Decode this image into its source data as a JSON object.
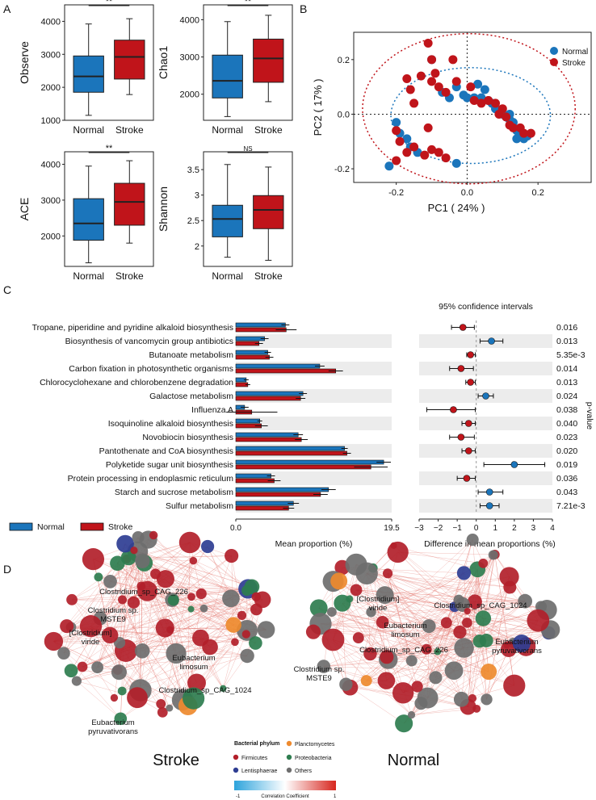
{
  "panel_labels": [
    "A",
    "B",
    "C",
    "D"
  ],
  "colors": {
    "normal": "#1B75BB",
    "stroke": "#C0141A",
    "firmicutes": "#B21F2A",
    "planctomycetes": "#EE8A2E",
    "lentisphaerae": "#2E3D92",
    "proteobacteria": "#2E7D4F",
    "others": "#6E6E6E",
    "edge": "#E06A60"
  },
  "chart_data": [
    {
      "panel": "A",
      "type": "box",
      "metric": "Observe",
      "categories": [
        "Normal",
        "Stroke"
      ],
      "ylim": [
        1000,
        4500
      ],
      "yticks": [
        1000,
        2000,
        3000,
        4000
      ],
      "boxes": [
        {
          "group": "Normal",
          "min": 1150,
          "q1": 1850,
          "median": 2330,
          "q3": 2950,
          "max": 3920
        },
        {
          "group": "Stroke",
          "min": 1780,
          "q1": 2250,
          "median": 2920,
          "q3": 3430,
          "max": 4080
        }
      ],
      "significance": "**"
    },
    {
      "panel": "A",
      "type": "box",
      "metric": "Chao1",
      "categories": [
        "Normal",
        "Stroke"
      ],
      "ylim": [
        1300,
        4400
      ],
      "yticks": [
        2000,
        3000,
        4000
      ],
      "boxes": [
        {
          "group": "Normal",
          "min": 1400,
          "q1": 1900,
          "median": 2360,
          "q3": 3050,
          "max": 3950
        },
        {
          "group": "Stroke",
          "min": 1800,
          "q1": 2320,
          "median": 2960,
          "q3": 3480,
          "max": 4120
        }
      ],
      "significance": "**"
    },
    {
      "panel": "A",
      "type": "box",
      "metric": "ACE",
      "categories": [
        "Normal",
        "Stroke"
      ],
      "ylim": [
        1150,
        4350
      ],
      "yticks": [
        2000,
        3000,
        4000
      ],
      "boxes": [
        {
          "group": "Normal",
          "min": 1250,
          "q1": 1880,
          "median": 2350,
          "q3": 3040,
          "max": 3950
        },
        {
          "group": "Stroke",
          "min": 1800,
          "q1": 2300,
          "median": 2950,
          "q3": 3470,
          "max": 4100
        }
      ],
      "significance": "**"
    },
    {
      "panel": "A",
      "type": "box",
      "metric": "Shannon",
      "categories": [
        "Normal",
        "Stroke"
      ],
      "ylim": [
        1.6,
        3.85
      ],
      "yticks": [
        2.0,
        2.5,
        3.0,
        3.5
      ],
      "boxes": [
        {
          "group": "Normal",
          "min": 1.78,
          "q1": 2.18,
          "median": 2.53,
          "q3": 2.8,
          "max": 3.6
        },
        {
          "group": "Stroke",
          "min": 1.72,
          "q1": 2.34,
          "median": 2.71,
          "q3": 2.99,
          "max": 3.55
        }
      ],
      "significance": "NS"
    },
    {
      "panel": "B",
      "type": "scatter",
      "xlabel": "PC1 ( 24% )",
      "ylabel": "PC2 ( 17% )",
      "xlim": [
        -0.32,
        0.35
      ],
      "ylim": [
        -0.25,
        0.3
      ],
      "xticks": [
        -0.2,
        0.0,
        0.2
      ],
      "yticks": [
        -0.2,
        0.0,
        0.2
      ],
      "legend": [
        "Normal",
        "Stroke"
      ],
      "series": [
        {
          "name": "Normal",
          "points": [
            [
              -0.1,
              0.2
            ],
            [
              -0.07,
              0.08
            ],
            [
              -0.05,
              0.06
            ],
            [
              -0.03,
              0.1
            ],
            [
              -0.01,
              0.07
            ],
            [
              0.0,
              0.06
            ],
            [
              0.02,
              0.06
            ],
            [
              0.04,
              0.06
            ],
            [
              0.05,
              0.09
            ],
            [
              0.06,
              0.05
            ],
            [
              0.07,
              0.04
            ],
            [
              0.08,
              0.02
            ],
            [
              0.09,
              0.01
            ],
            [
              0.1,
              0.0
            ],
            [
              0.11,
              -0.01
            ],
            [
              0.12,
              -0.02
            ],
            [
              0.13,
              -0.03
            ],
            [
              0.14,
              -0.06
            ],
            [
              0.15,
              -0.07
            ],
            [
              0.16,
              -0.09
            ],
            [
              0.17,
              -0.08
            ],
            [
              0.03,
              0.11
            ],
            [
              -0.2,
              -0.03
            ],
            [
              -0.19,
              -0.07
            ],
            [
              -0.17,
              -0.09
            ],
            [
              -0.16,
              -0.12
            ],
            [
              -0.14,
              -0.14
            ],
            [
              -0.22,
              -0.19
            ],
            [
              -0.03,
              -0.18
            ],
            [
              0.14,
              -0.09
            ],
            [
              0.12,
              0.0
            ]
          ]
        },
        {
          "name": "Stroke",
          "points": [
            [
              -0.11,
              0.26
            ],
            [
              -0.1,
              0.2
            ],
            [
              -0.09,
              0.15
            ],
            [
              -0.13,
              0.14
            ],
            [
              -0.04,
              0.2
            ],
            [
              -0.1,
              0.12
            ],
            [
              -0.08,
              0.1
            ],
            [
              -0.06,
              0.08
            ],
            [
              -0.03,
              0.12
            ],
            [
              0.01,
              0.1
            ],
            [
              0.04,
              0.04
            ],
            [
              0.06,
              0.05
            ],
            [
              0.08,
              0.04
            ],
            [
              0.1,
              0.02
            ],
            [
              0.11,
              -0.01
            ],
            [
              0.12,
              -0.04
            ],
            [
              0.13,
              -0.05
            ],
            [
              0.15,
              -0.05
            ],
            [
              0.16,
              -0.07
            ],
            [
              0.18,
              -0.07
            ],
            [
              -0.17,
              0.13
            ],
            [
              -0.15,
              0.04
            ],
            [
              -0.2,
              -0.06
            ],
            [
              -0.19,
              -0.1
            ],
            [
              -0.17,
              -0.14
            ],
            [
              -0.15,
              -0.12
            ],
            [
              -0.12,
              -0.15
            ],
            [
              -0.1,
              -0.13
            ],
            [
              -0.08,
              -0.14
            ],
            [
              -0.06,
              -0.16
            ],
            [
              -0.2,
              -0.17
            ],
            [
              -0.16,
              0.09
            ],
            [
              0.02,
              0.05
            ],
            [
              -0.11,
              -0.05
            ],
            [
              0.09,
              0.0
            ]
          ]
        }
      ]
    },
    {
      "panel": "C",
      "type": "extended_error_bar",
      "title_ci": "95% confidence intervals",
      "xlabel_left": "Mean proportion (%)",
      "xlabel_right": "Difference in mean proportions (%)",
      "ylabel_right": "p-value",
      "xlim_left": [
        0,
        19.5
      ],
      "xticks_left": [
        "0.0",
        "19.5"
      ],
      "xlim_right": [
        -3,
        4
      ],
      "xticks_right": [
        "−3",
        "−2",
        "−1",
        "0",
        "1",
        "2",
        "3",
        "4"
      ],
      "legend": [
        "Normal",
        "Stroke"
      ],
      "rows": [
        {
          "pathway": "Tropane, piperidine and pyridine alkaloid biosynthesis",
          "normal": 6.2,
          "normal_err": 0.5,
          "stroke": 6.3,
          "stroke_err": 1.3,
          "diff": -0.7,
          "ci": [
            -1.3,
            -0.1
          ],
          "p": "0.016"
        },
        {
          "pathway": "Biosynthesis of vancomycin group antibiotics",
          "normal": 3.6,
          "normal_err": 0.5,
          "stroke": 2.9,
          "stroke_err": 0.5,
          "diff": 0.8,
          "ci": [
            0.2,
            1.4
          ],
          "p": "0.013"
        },
        {
          "pathway": "Butanoate metabolism",
          "normal": 4.0,
          "normal_err": 0.4,
          "stroke": 4.2,
          "stroke_err": 0.5,
          "diff": -0.3,
          "ci": [
            -0.5,
            -0.05
          ],
          "p": "5.35e-3"
        },
        {
          "pathway": "Carbon fixation in photosynthetic organisms",
          "normal": 10.5,
          "normal_err": 0.6,
          "stroke": 12.5,
          "stroke_err": 0.9,
          "diff": -0.8,
          "ci": [
            -1.4,
            -0.15
          ],
          "p": "0.014"
        },
        {
          "pathway": "Chlorocyclohexane and chlorobenzene degradation",
          "normal": 1.3,
          "normal_err": 0.3,
          "stroke": 1.5,
          "stroke_err": 0.3,
          "diff": -0.3,
          "ci": [
            -0.55,
            -0.05
          ],
          "p": "0.013"
        },
        {
          "pathway": "Galactose metabolism",
          "normal": 8.4,
          "normal_err": 0.5,
          "stroke": 8.1,
          "stroke_err": 0.6,
          "diff": 0.5,
          "ci": [
            0.1,
            0.9
          ],
          "p": "0.024"
        },
        {
          "pathway": "Influenza A",
          "normal": 1.1,
          "normal_err": 0.5,
          "stroke": 2.0,
          "stroke_err": 3.2,
          "diff": -1.2,
          "ci": [
            -2.6,
            -0.05
          ],
          "p": "0.038"
        },
        {
          "pathway": "Isoquinoline alkaloid biosynthesis",
          "normal": 3.0,
          "normal_err": 0.3,
          "stroke": 3.2,
          "stroke_err": 0.8,
          "diff": -0.4,
          "ci": [
            -0.75,
            -0.05
          ],
          "p": "0.040"
        },
        {
          "pathway": "Novobiocin biosynthesis",
          "normal": 7.8,
          "normal_err": 0.6,
          "stroke": 8.2,
          "stroke_err": 0.8,
          "diff": -0.8,
          "ci": [
            -1.4,
            -0.1
          ],
          "p": "0.023"
        },
        {
          "pathway": "Pantothenate and CoA biosynthesis",
          "normal": 13.6,
          "normal_err": 0.4,
          "stroke": 13.9,
          "stroke_err": 0.5,
          "diff": -0.4,
          "ci": [
            -0.75,
            -0.05
          ],
          "p": "0.020"
        },
        {
          "pathway": "Polyketide sugar unit biosynthesis",
          "normal": 18.5,
          "normal_err": 0.9,
          "stroke": 16.9,
          "stroke_err": 2.1,
          "diff": 2.0,
          "ci": [
            0.4,
            3.6
          ],
          "p": "0.019"
        },
        {
          "pathway": "Protein processing in endoplasmic reticulum",
          "normal": 4.4,
          "normal_err": 0.5,
          "stroke": 4.8,
          "stroke_err": 0.8,
          "diff": -0.5,
          "ci": [
            -1.0,
            -0.05
          ],
          "p": "0.036"
        },
        {
          "pathway": "Starch and sucrose metabolism",
          "normal": 11.6,
          "normal_err": 0.9,
          "stroke": 10.6,
          "stroke_err": 0.9,
          "diff": 0.7,
          "ci": [
            0.1,
            1.4
          ],
          "p": "0.043"
        },
        {
          "pathway": "Sulfur metabolism",
          "normal": 7.2,
          "normal_err": 0.7,
          "stroke": 6.6,
          "stroke_err": 0.7,
          "diff": 0.7,
          "ci": [
            0.2,
            1.2
          ],
          "p": "7.21e-3"
        }
      ]
    },
    {
      "panel": "D",
      "type": "network",
      "networks": [
        {
          "title": "Stroke",
          "labels": [
            "Clostridium_sp_CAG_226",
            "Clostridium sp. MSTE9",
            "[Clostridium] viride",
            "Eubacterium limosum",
            "Clostridium_sp_CAG_1024",
            "Eubacterium pyruvativorans"
          ]
        },
        {
          "title": "Normal",
          "labels": [
            "[Clostridium] viride",
            "Clostridium_sp_CAG_1024",
            "Eubacterium limosum",
            "Eubacterium pyruvativorans",
            "Clostridium_sp_CAG_226",
            "Clostridium sp. MSTE9"
          ]
        }
      ],
      "legend_title": "Bacterial phylum",
      "legend": [
        "Firmicutes",
        "Planctomycetes",
        "Lentisphaerae",
        "Proteobacteria",
        "Others"
      ],
      "colorbar_label": "Correlation Coefficient",
      "colorbar_min": "-1",
      "colorbar_max": "1"
    }
  ]
}
